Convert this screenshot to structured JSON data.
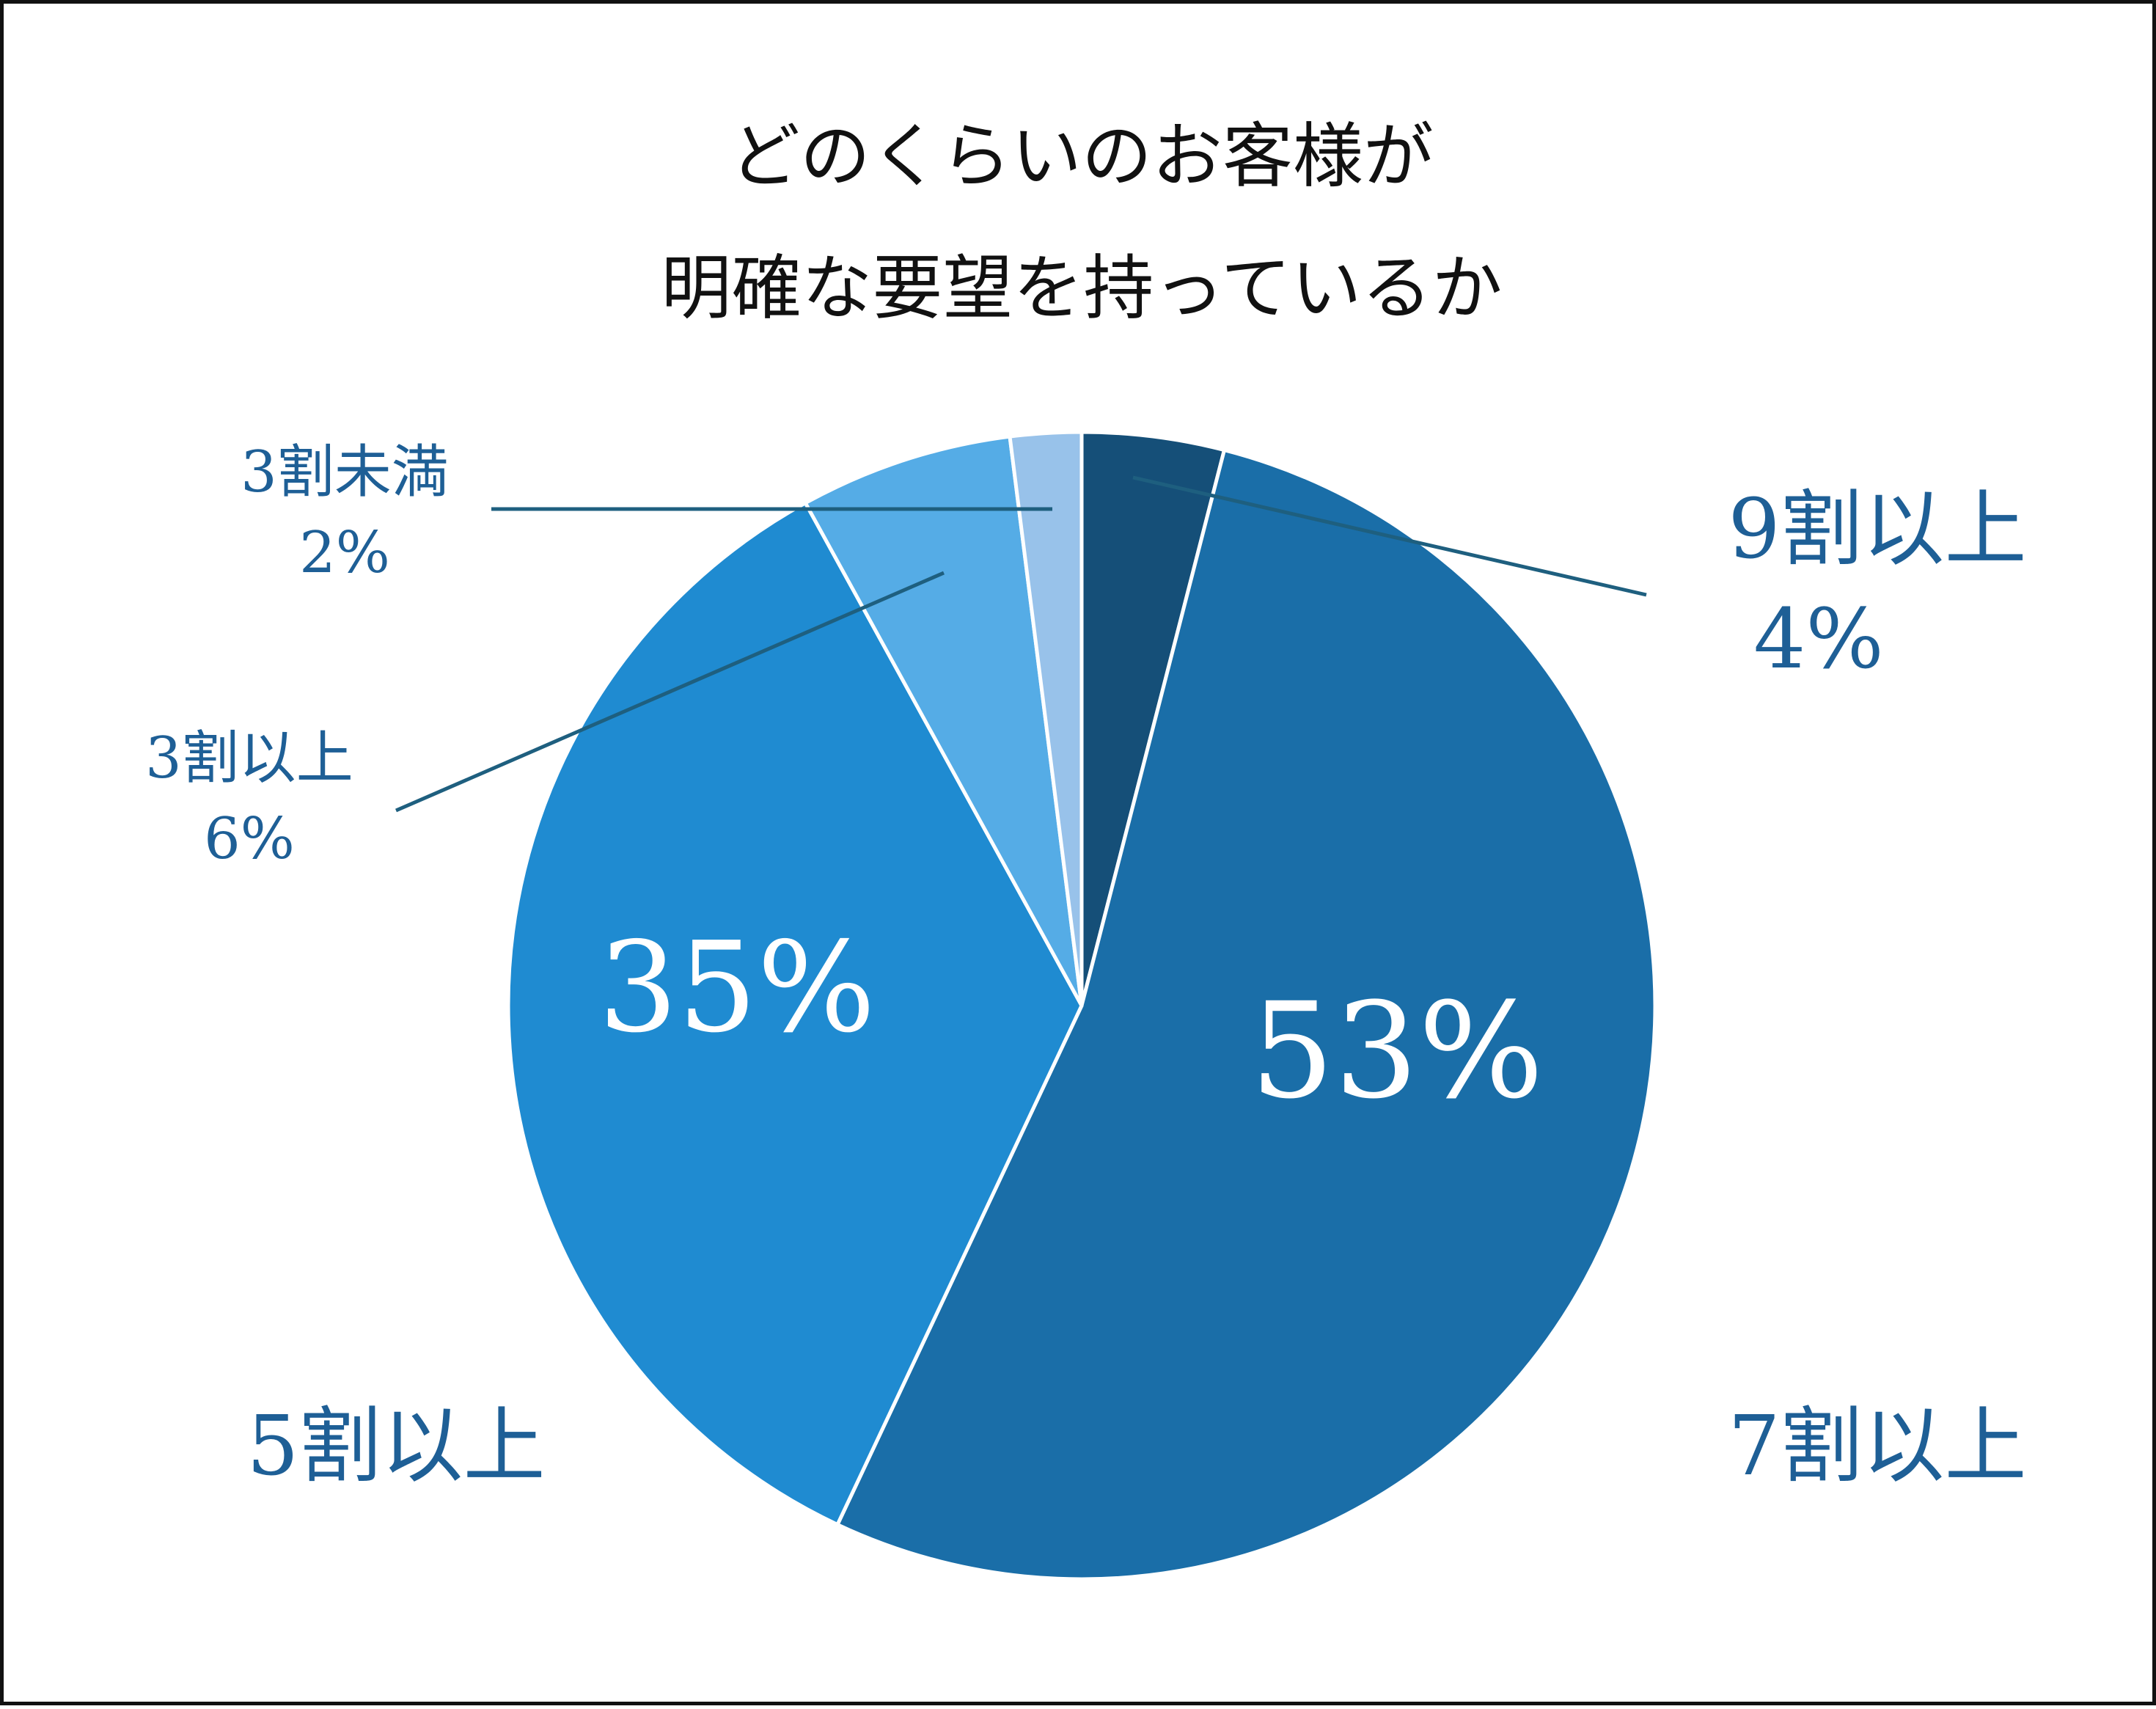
{
  "title_lines": [
    "どのくらいのお客様が",
    "明確な要望を持っているか"
  ],
  "chart_data": {
    "type": "pie",
    "title": "どのくらいのお客様が 明確な要望を持っているか",
    "start_angle_deg": 0,
    "direction": "clockwise",
    "slices": [
      {
        "name": "9割以上",
        "value": 4,
        "label": "4%",
        "color": "#154f78",
        "label_style": "leader"
      },
      {
        "name": "7割以上",
        "value": 53,
        "label": "53%",
        "color": "#1a6ea8",
        "label_style": "inside"
      },
      {
        "name": "5割以上",
        "value": 35,
        "label": "35%",
        "color": "#1f8bd1",
        "label_style": "inside"
      },
      {
        "name": "3割以上",
        "value": 6,
        "label": "6%",
        "color": "#55ace6",
        "label_style": "leader"
      },
      {
        "name": "3割未満",
        "value": 2,
        "label": "2%",
        "color": "#98c2ea",
        "label_style": "leader"
      }
    ],
    "label_color": "#1e5f96",
    "value_text_color": "#ffffff",
    "leader_color": "#1e5f7f"
  }
}
